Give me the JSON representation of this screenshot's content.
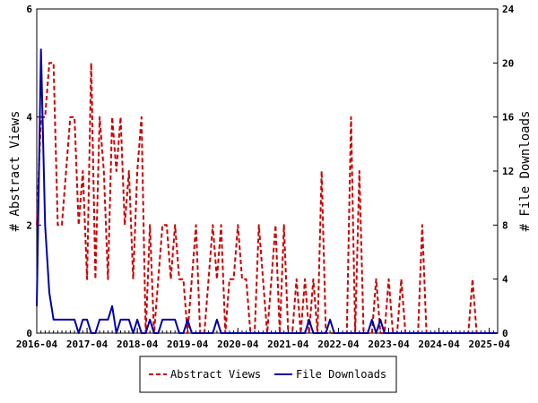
{
  "chart_data": {
    "type": "line",
    "title": "",
    "ylabel_left": "# Abstract Views",
    "ylabel_right": "# File Downloads",
    "ylim_left": [
      0,
      6
    ],
    "ylim_right": [
      0,
      24
    ],
    "yticks_left": [
      "0",
      "2",
      "4",
      "6"
    ],
    "yticks_right": [
      "0",
      "4",
      "8",
      "12",
      "16",
      "20",
      "24"
    ],
    "xlim": [
      "2016-04",
      "2025-06"
    ],
    "xticks": [
      "2016-04",
      "2017-04",
      "2018-04",
      "2019-04",
      "2020-04",
      "2021-04",
      "2022-04",
      "2023-04",
      "2024-04",
      "2025-04"
    ],
    "legend_position": "bottom-center",
    "grid": false,
    "series": [
      {
        "name": "Abstract Views",
        "axis": "left",
        "color": "#cc0000",
        "style": "dashed",
        "values": [
          [
            "2016-04",
            2
          ],
          [
            "2016-05",
            4
          ],
          [
            "2016-06",
            4
          ],
          [
            "2016-07",
            5
          ],
          [
            "2016-08",
            5
          ],
          [
            "2016-09",
            2
          ],
          [
            "2016-10",
            2
          ],
          [
            "2016-11",
            3
          ],
          [
            "2016-12",
            4
          ],
          [
            "2017-01",
            4
          ],
          [
            "2017-02",
            2
          ],
          [
            "2017-03",
            3
          ],
          [
            "2017-04",
            1
          ],
          [
            "2017-05",
            5
          ],
          [
            "2017-06",
            1
          ],
          [
            "2017-07",
            4
          ],
          [
            "2017-08",
            3
          ],
          [
            "2017-09",
            1
          ],
          [
            "2017-10",
            4
          ],
          [
            "2017-11",
            3
          ],
          [
            "2017-12",
            4
          ],
          [
            "2018-01",
            2
          ],
          [
            "2018-02",
            3
          ],
          [
            "2018-03",
            1
          ],
          [
            "2018-04",
            3
          ],
          [
            "2018-05",
            4
          ],
          [
            "2018-06",
            0
          ],
          [
            "2018-07",
            2
          ],
          [
            "2018-08",
            0
          ],
          [
            "2018-09",
            1
          ],
          [
            "2018-10",
            2
          ],
          [
            "2018-11",
            2
          ],
          [
            "2018-12",
            1
          ],
          [
            "2019-01",
            2
          ],
          [
            "2019-02",
            1
          ],
          [
            "2019-03",
            1
          ],
          [
            "2019-04",
            0
          ],
          [
            "2019-05",
            1
          ],
          [
            "2019-06",
            2
          ],
          [
            "2019-07",
            0
          ],
          [
            "2019-08",
            0
          ],
          [
            "2019-09",
            1
          ],
          [
            "2019-10",
            2
          ],
          [
            "2019-11",
            1
          ],
          [
            "2019-12",
            2
          ],
          [
            "2020-01",
            0
          ],
          [
            "2020-02",
            1
          ],
          [
            "2020-03",
            1
          ],
          [
            "2020-04",
            2
          ],
          [
            "2020-05",
            1
          ],
          [
            "2020-06",
            1
          ],
          [
            "2020-07",
            0
          ],
          [
            "2020-08",
            0
          ],
          [
            "2020-09",
            2
          ],
          [
            "2020-10",
            1
          ],
          [
            "2020-11",
            0
          ],
          [
            "2020-12",
            1
          ],
          [
            "2021-01",
            2
          ],
          [
            "2021-02",
            0
          ],
          [
            "2021-03",
            2
          ],
          [
            "2021-04",
            0
          ],
          [
            "2021-05",
            0
          ],
          [
            "2021-06",
            1
          ],
          [
            "2021-07",
            0
          ],
          [
            "2021-08",
            1
          ],
          [
            "2021-09",
            0
          ],
          [
            "2021-10",
            1
          ],
          [
            "2021-11",
            0
          ],
          [
            "2021-12",
            3
          ],
          [
            "2022-01",
            0
          ],
          [
            "2022-02",
            0
          ],
          [
            "2022-03",
            0
          ],
          [
            "2022-04",
            0
          ],
          [
            "2022-05",
            0
          ],
          [
            "2022-06",
            0
          ],
          [
            "2022-07",
            4
          ],
          [
            "2022-08",
            0
          ],
          [
            "2022-09",
            3
          ],
          [
            "2022-10",
            0
          ],
          [
            "2022-11",
            0
          ],
          [
            "2022-12",
            0
          ],
          [
            "2023-01",
            1
          ],
          [
            "2023-02",
            0
          ],
          [
            "2023-03",
            0
          ],
          [
            "2023-04",
            1
          ],
          [
            "2023-05",
            0
          ],
          [
            "2023-06",
            0
          ],
          [
            "2023-07",
            1
          ],
          [
            "2023-08",
            0
          ],
          [
            "2023-09",
            0
          ],
          [
            "2023-10",
            0
          ],
          [
            "2023-11",
            0
          ],
          [
            "2023-12",
            2
          ],
          [
            "2024-01",
            0
          ],
          [
            "2024-02",
            0
          ],
          [
            "2024-03",
            0
          ],
          [
            "2024-04",
            0
          ],
          [
            "2024-05",
            0
          ],
          [
            "2024-06",
            0
          ],
          [
            "2024-07",
            0
          ],
          [
            "2024-08",
            0
          ],
          [
            "2024-09",
            0
          ],
          [
            "2024-10",
            0
          ],
          [
            "2024-11",
            0
          ],
          [
            "2024-12",
            1
          ],
          [
            "2025-01",
            0
          ],
          [
            "2025-02",
            0
          ],
          [
            "2025-03",
            0
          ],
          [
            "2025-04",
            0
          ],
          [
            "2025-05",
            0
          ],
          [
            "2025-06",
            0
          ]
        ]
      },
      {
        "name": "File Downloads",
        "axis": "right",
        "color": "#0000aa",
        "style": "solid",
        "values": [
          [
            "2016-04",
            2
          ],
          [
            "2016-05",
            21
          ],
          [
            "2016-06",
            8
          ],
          [
            "2016-07",
            3
          ],
          [
            "2016-08",
            1
          ],
          [
            "2016-09",
            1
          ],
          [
            "2016-10",
            1
          ],
          [
            "2016-11",
            1
          ],
          [
            "2016-12",
            1
          ],
          [
            "2017-01",
            1
          ],
          [
            "2017-02",
            0
          ],
          [
            "2017-03",
            1
          ],
          [
            "2017-04",
            1
          ],
          [
            "2017-05",
            0
          ],
          [
            "2017-06",
            0
          ],
          [
            "2017-07",
            1
          ],
          [
            "2017-08",
            1
          ],
          [
            "2017-09",
            1
          ],
          [
            "2017-10",
            2
          ],
          [
            "2017-11",
            0
          ],
          [
            "2017-12",
            1
          ],
          [
            "2018-01",
            1
          ],
          [
            "2018-02",
            1
          ],
          [
            "2018-03",
            0
          ],
          [
            "2018-04",
            1
          ],
          [
            "2018-05",
            0
          ],
          [
            "2018-06",
            0
          ],
          [
            "2018-07",
            1
          ],
          [
            "2018-08",
            0
          ],
          [
            "2018-09",
            0
          ],
          [
            "2018-10",
            1
          ],
          [
            "2018-11",
            1
          ],
          [
            "2018-12",
            1
          ],
          [
            "2019-01",
            1
          ],
          [
            "2019-02",
            0
          ],
          [
            "2019-03",
            0
          ],
          [
            "2019-04",
            1
          ],
          [
            "2019-05",
            0
          ],
          [
            "2019-06",
            0
          ],
          [
            "2019-07",
            0
          ],
          [
            "2019-08",
            0
          ],
          [
            "2019-09",
            0
          ],
          [
            "2019-10",
            0
          ],
          [
            "2019-11",
            1
          ],
          [
            "2019-12",
            0
          ],
          [
            "2020-01",
            0
          ],
          [
            "2020-02",
            0
          ],
          [
            "2020-03",
            0
          ],
          [
            "2020-04",
            0
          ],
          [
            "2020-05",
            0
          ],
          [
            "2020-06",
            0
          ],
          [
            "2020-07",
            0
          ],
          [
            "2020-08",
            0
          ],
          [
            "2020-09",
            0
          ],
          [
            "2020-10",
            0
          ],
          [
            "2020-11",
            0
          ],
          [
            "2020-12",
            0
          ],
          [
            "2021-01",
            0
          ],
          [
            "2021-02",
            0
          ],
          [
            "2021-03",
            0
          ],
          [
            "2021-04",
            0
          ],
          [
            "2021-05",
            0
          ],
          [
            "2021-06",
            0
          ],
          [
            "2021-07",
            0
          ],
          [
            "2021-08",
            0
          ],
          [
            "2021-09",
            1
          ],
          [
            "2021-10",
            0
          ],
          [
            "2021-11",
            0
          ],
          [
            "2021-12",
            0
          ],
          [
            "2022-01",
            0
          ],
          [
            "2022-02",
            1
          ],
          [
            "2022-03",
            0
          ],
          [
            "2022-04",
            0
          ],
          [
            "2022-05",
            0
          ],
          [
            "2022-06",
            0
          ],
          [
            "2022-07",
            0
          ],
          [
            "2022-08",
            0
          ],
          [
            "2022-09",
            0
          ],
          [
            "2022-10",
            0
          ],
          [
            "2022-11",
            0
          ],
          [
            "2022-12",
            1
          ],
          [
            "2023-01",
            0
          ],
          [
            "2023-02",
            1
          ],
          [
            "2023-03",
            0
          ],
          [
            "2023-04",
            0
          ],
          [
            "2023-05",
            0
          ],
          [
            "2023-06",
            0
          ],
          [
            "2023-07",
            0
          ],
          [
            "2023-08",
            0
          ],
          [
            "2023-09",
            0
          ],
          [
            "2023-10",
            0
          ],
          [
            "2023-11",
            0
          ],
          [
            "2023-12",
            0
          ],
          [
            "2024-01",
            0
          ],
          [
            "2024-02",
            0
          ],
          [
            "2024-03",
            0
          ],
          [
            "2024-04",
            0
          ],
          [
            "2024-05",
            0
          ],
          [
            "2024-06",
            0
          ],
          [
            "2024-07",
            0
          ],
          [
            "2024-08",
            0
          ],
          [
            "2024-09",
            0
          ],
          [
            "2024-10",
            0
          ],
          [
            "2024-11",
            0
          ],
          [
            "2024-12",
            0
          ],
          [
            "2025-01",
            0
          ],
          [
            "2025-02",
            0
          ],
          [
            "2025-03",
            0
          ],
          [
            "2025-04",
            0
          ],
          [
            "2025-05",
            0
          ],
          [
            "2025-06",
            0
          ]
        ]
      }
    ]
  }
}
